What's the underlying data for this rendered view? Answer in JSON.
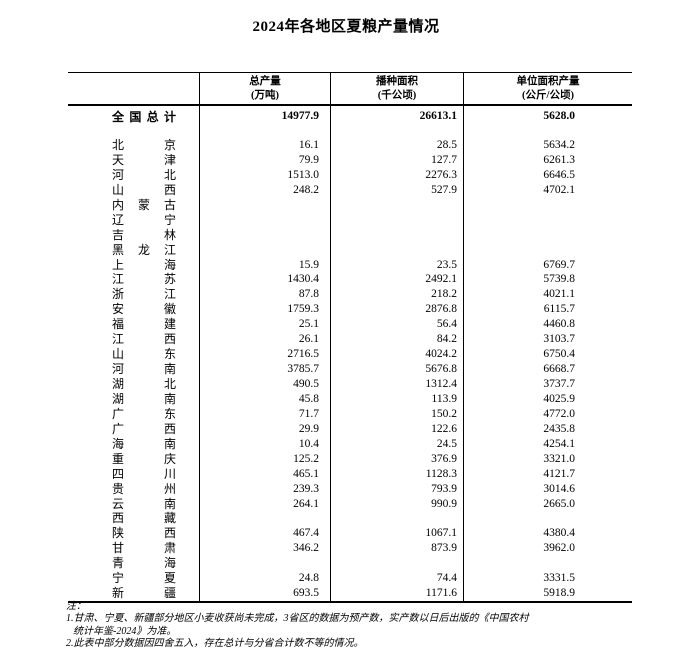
{
  "title": "2024年各地区夏粮产量情况",
  "colors": {
    "text": "#000000",
    "background": "#ffffff",
    "border": "#000000"
  },
  "table": {
    "columns": [
      {
        "label": "总产量",
        "unit": "(万吨)"
      },
      {
        "label": "播种面积",
        "unit": "(千公顷)"
      },
      {
        "label": "单位面积产量",
        "unit": "(公斤/公顷)"
      }
    ],
    "total": {
      "region": "全国总计",
      "values": [
        "14977.9",
        "26613.1",
        "5628.0"
      ]
    },
    "rows": [
      {
        "region": "北京",
        "values": [
          "16.1",
          "28.5",
          "5634.2"
        ]
      },
      {
        "region": "天津",
        "values": [
          "79.9",
          "127.7",
          "6261.3"
        ]
      },
      {
        "region": "河北",
        "values": [
          "1513.0",
          "2276.3",
          "6646.5"
        ]
      },
      {
        "region": "山西",
        "values": [
          "248.2",
          "527.9",
          "4702.1"
        ]
      },
      {
        "region": "内蒙古",
        "values": [
          "",
          "",
          ""
        ]
      },
      {
        "region": "辽宁",
        "values": [
          "",
          "",
          ""
        ]
      },
      {
        "region": "吉林",
        "values": [
          "",
          "",
          ""
        ]
      },
      {
        "region": "黑龙江",
        "values": [
          "",
          "",
          ""
        ]
      },
      {
        "region": "上海",
        "values": [
          "15.9",
          "23.5",
          "6769.7"
        ]
      },
      {
        "region": "江苏",
        "values": [
          "1430.4",
          "2492.1",
          "5739.8"
        ]
      },
      {
        "region": "浙江",
        "values": [
          "87.8",
          "218.2",
          "4021.1"
        ]
      },
      {
        "region": "安徽",
        "values": [
          "1759.3",
          "2876.8",
          "6115.7"
        ]
      },
      {
        "region": "福建",
        "values": [
          "25.1",
          "56.4",
          "4460.8"
        ]
      },
      {
        "region": "江西",
        "values": [
          "26.1",
          "84.2",
          "3103.7"
        ]
      },
      {
        "region": "山东",
        "values": [
          "2716.5",
          "4024.2",
          "6750.4"
        ]
      },
      {
        "region": "河南",
        "values": [
          "3785.7",
          "5676.8",
          "6668.7"
        ]
      },
      {
        "region": "湖北",
        "values": [
          "490.5",
          "1312.4",
          "3737.7"
        ]
      },
      {
        "region": "湖南",
        "values": [
          "45.8",
          "113.9",
          "4025.9"
        ]
      },
      {
        "region": "广东",
        "values": [
          "71.7",
          "150.2",
          "4772.0"
        ]
      },
      {
        "region": "广西",
        "values": [
          "29.9",
          "122.6",
          "2435.8"
        ]
      },
      {
        "region": "海南",
        "values": [
          "10.4",
          "24.5",
          "4254.1"
        ]
      },
      {
        "region": "重庆",
        "values": [
          "125.2",
          "376.9",
          "3321.0"
        ]
      },
      {
        "region": "四川",
        "values": [
          "465.1",
          "1128.3",
          "4121.7"
        ]
      },
      {
        "region": "贵州",
        "values": [
          "239.3",
          "793.9",
          "3014.6"
        ]
      },
      {
        "region": "云南",
        "values": [
          "264.1",
          "990.9",
          "2665.0"
        ]
      },
      {
        "region": "西藏",
        "values": [
          "",
          "",
          ""
        ]
      },
      {
        "region": "陕西",
        "values": [
          "467.4",
          "1067.1",
          "4380.4"
        ]
      },
      {
        "region": "甘肃",
        "values": [
          "346.2",
          "873.9",
          "3962.0"
        ]
      },
      {
        "region": "青海",
        "values": [
          "",
          "",
          ""
        ]
      },
      {
        "region": "宁夏",
        "values": [
          "24.8",
          "74.4",
          "3331.5"
        ]
      },
      {
        "region": "新疆",
        "values": [
          "693.5",
          "1171.6",
          "5918.9"
        ]
      }
    ]
  },
  "notes": {
    "label": "注：",
    "line1": "1.甘肃、宁夏、新疆部分地区小麦收获尚未完成，3省区的数据为预产数，实产数以日后出版的《中国农村",
    "line2": "统计年鉴-2024》为准。",
    "line3": "2.此表中部分数据因四舍五入，存在总计与分省合计数不等的情况。"
  }
}
